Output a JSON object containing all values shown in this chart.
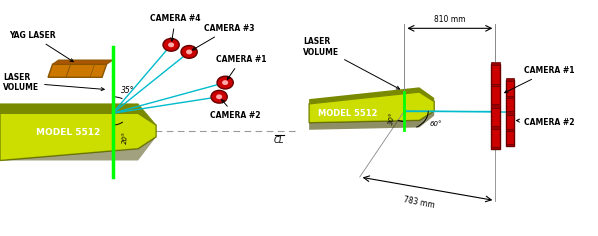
{
  "bg_color": "#ffffff",
  "fig_width": 5.98,
  "fig_height": 2.36,
  "dpi": 100,
  "left_panel": {
    "model_color": "#ccdd00",
    "model_dark": "#7a8a00",
    "model_shadow": "#444400",
    "laser_color": "#00ff00",
    "beam_color": "#00bbcc",
    "camera_fill": "#cc0000",
    "camera_edge": "#660000",
    "yag_color": "#cc7700",
    "yag_dark": "#885500",
    "cl_color": "#999999",
    "title": "MODEL 5512",
    "yag_label": "YAG LASER",
    "lv_label": "LASER\nVOLUME",
    "cam1_label": "CAMERA #1",
    "cam2_label": "CAMERA #2",
    "cam3_label": "CAMERA #3",
    "cam4_label": "CAMERA #4",
    "angle35_label": "35°",
    "angle20_label": "20°",
    "cl_label": "CL"
  },
  "right_panel": {
    "model_color": "#ccdd00",
    "model_dark": "#7a8a00",
    "laser_color": "#00ff00",
    "beam_color": "#00bbcc",
    "camera_fill": "#cc0000",
    "camera_edge": "#660000",
    "lv_label": "LASER\nVOLUME",
    "model_label": "MODEL 5512",
    "cam1_label": "CAMERA #1",
    "cam2_label": "CAMERA #2",
    "dim810_label": "810 mm",
    "dim783_label": "783 mm",
    "angle30_label": "30°",
    "angle60_label": "60°"
  }
}
